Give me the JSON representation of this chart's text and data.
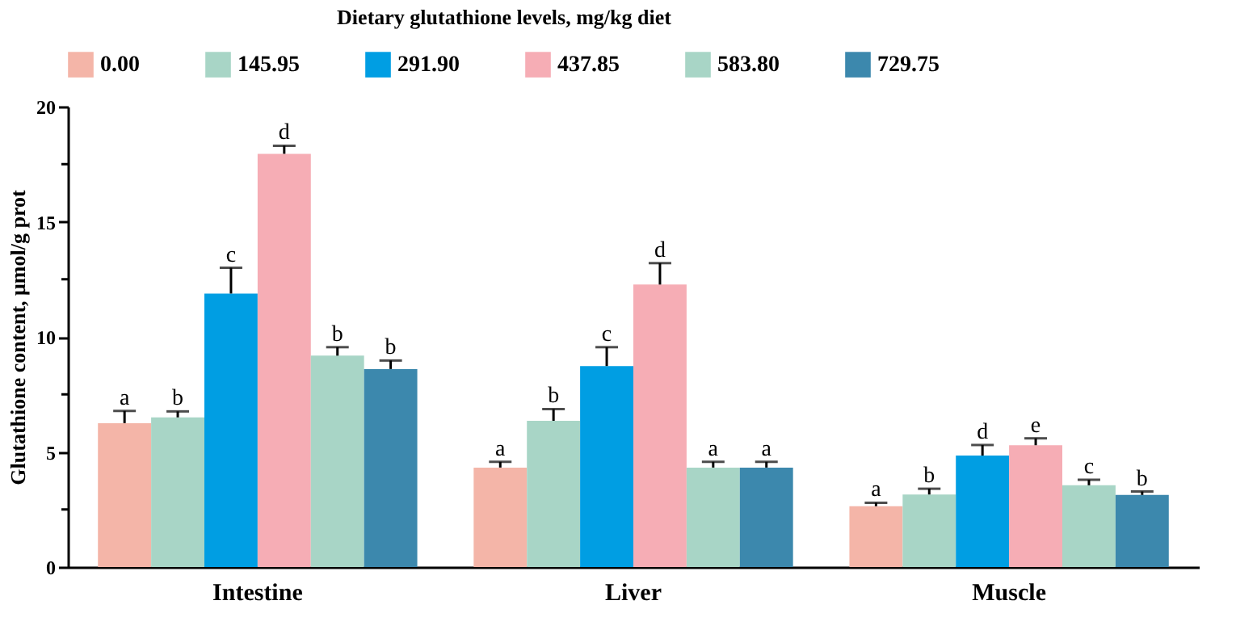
{
  "chart_data": {
    "type": "bar",
    "legend_title": "Dietary glutathione levels, mg/kg diet",
    "ylabel": "Glutathione content, μmol/g prot",
    "categories": [
      "Intestine",
      "Liver",
      "Muscle"
    ],
    "series": [
      {
        "name": "0.00",
        "color": "#f4b5a8",
        "values": [
          6.25,
          4.32,
          2.64
        ],
        "errors": [
          [
            6.25,
            6.78
          ],
          [
            4.32,
            4.57
          ],
          [
            2.64,
            2.79
          ]
        ]
      },
      {
        "name": "145.95",
        "color": "#a8d5c6",
        "values": [
          6.5,
          6.35,
          3.15
        ],
        "errors": [
          [
            6.5,
            6.76
          ],
          [
            6.35,
            6.86
          ],
          [
            3.15,
            3.4
          ]
        ]
      },
      {
        "name": "291.90",
        "color": "#009ee3",
        "values": [
          11.88,
          8.73,
          4.84
        ],
        "errors": [
          [
            11.88,
            13.0
          ],
          [
            8.73,
            9.55
          ],
          [
            4.84,
            5.3
          ]
        ]
      },
      {
        "name": "437.85",
        "color": "#f6adb5",
        "values": [
          17.95,
          12.27,
          5.29
        ],
        "errors": [
          [
            17.95,
            18.3
          ],
          [
            12.27,
            13.2
          ],
          [
            5.29,
            5.59
          ]
        ]
      },
      {
        "name": "583.80",
        "color": "#a8d5c6",
        "values": [
          9.18,
          4.32,
          3.55
        ],
        "errors": [
          [
            9.18,
            9.55
          ],
          [
            4.32,
            4.57
          ],
          [
            3.55,
            3.79
          ]
        ]
      },
      {
        "name": "729.75",
        "color": "#3c88ad",
        "values": [
          8.6,
          4.32,
          3.13
        ],
        "errors": [
          [
            8.6,
            8.97
          ],
          [
            4.32,
            4.57
          ],
          [
            3.13,
            3.28
          ]
        ]
      }
    ],
    "annotations": [
      "a",
      "a",
      "a",
      "b",
      "b",
      "b",
      "c",
      "c",
      "d",
      "d",
      "d",
      "e",
      "b",
      "a",
      "c",
      "b",
      "a",
      "b"
    ],
    "ylim": [
      0,
      20
    ],
    "yticks": [
      0,
      {
        "value": 2.5,
        "label": null
      },
      5,
      {
        "value": 7.5,
        "label": null
      },
      10,
      {
        "value": 12.5,
        "label": null
      },
      15,
      {
        "value": 17.5,
        "label": null
      },
      20
    ],
    "grid": false,
    "legend": "top"
  }
}
